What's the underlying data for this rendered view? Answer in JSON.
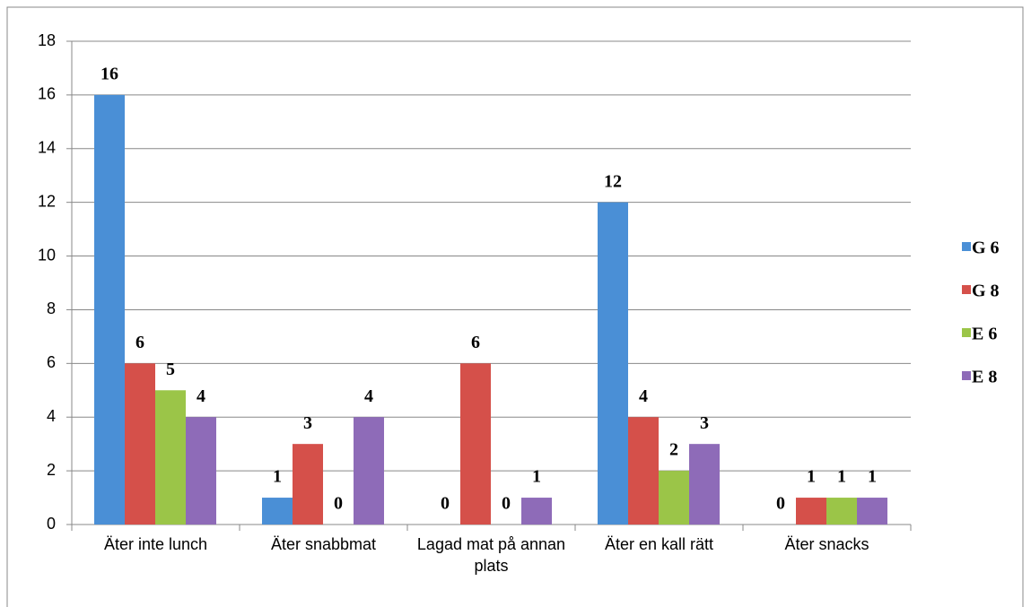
{
  "chart_data": {
    "type": "bar",
    "categories": [
      "Äter inte lunch",
      "Äter snabbmat",
      "Lagad mat på annan plats",
      "Äter en kall rätt",
      "Äter snacks"
    ],
    "series": [
      {
        "name": "G 6",
        "color": "#4a8fd6",
        "values": [
          16,
          1,
          0,
          12,
          0
        ]
      },
      {
        "name": "G 8",
        "color": "#d5504a",
        "values": [
          6,
          3,
          6,
          4,
          1
        ]
      },
      {
        "name": "E 6",
        "color": "#9bc548",
        "values": [
          5,
          0,
          0,
          2,
          1
        ]
      },
      {
        "name": "E 8",
        "color": "#8e6bb8",
        "values": [
          4,
          4,
          1,
          3,
          1
        ]
      }
    ],
    "ylim": [
      0,
      18
    ],
    "yticks": [
      0,
      2,
      4,
      6,
      8,
      10,
      12,
      14,
      16,
      18
    ],
    "grid": true,
    "legend": "right"
  }
}
